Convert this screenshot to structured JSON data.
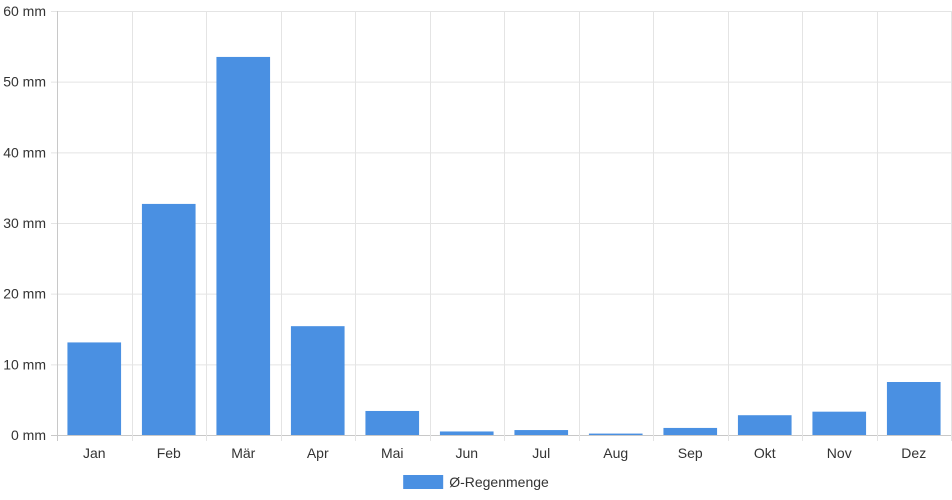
{
  "chart_data": {
    "type": "bar",
    "categories": [
      "Jan",
      "Feb",
      "Mär",
      "Apr",
      "Mai",
      "Jun",
      "Jul",
      "Aug",
      "Sep",
      "Okt",
      "Nov",
      "Dez"
    ],
    "series": [
      {
        "name": "Ø-Regenmenge",
        "color": "#4a90e2",
        "values": [
          13.1,
          32.7,
          53.5,
          15.4,
          3.4,
          0.5,
          0.7,
          0.2,
          1.0,
          2.8,
          3.3,
          7.5
        ]
      }
    ],
    "ylim": [
      0,
      60
    ],
    "yticks": [
      0,
      10,
      20,
      30,
      40,
      50,
      60
    ],
    "ytick_labels": [
      "0 mm",
      "10 mm",
      "20 mm",
      "30 mm",
      "40 mm",
      "50 mm",
      "60 mm"
    ],
    "grid": true,
    "legend_position": "bottom-center",
    "title": "",
    "xlabel": "",
    "ylabel": ""
  }
}
